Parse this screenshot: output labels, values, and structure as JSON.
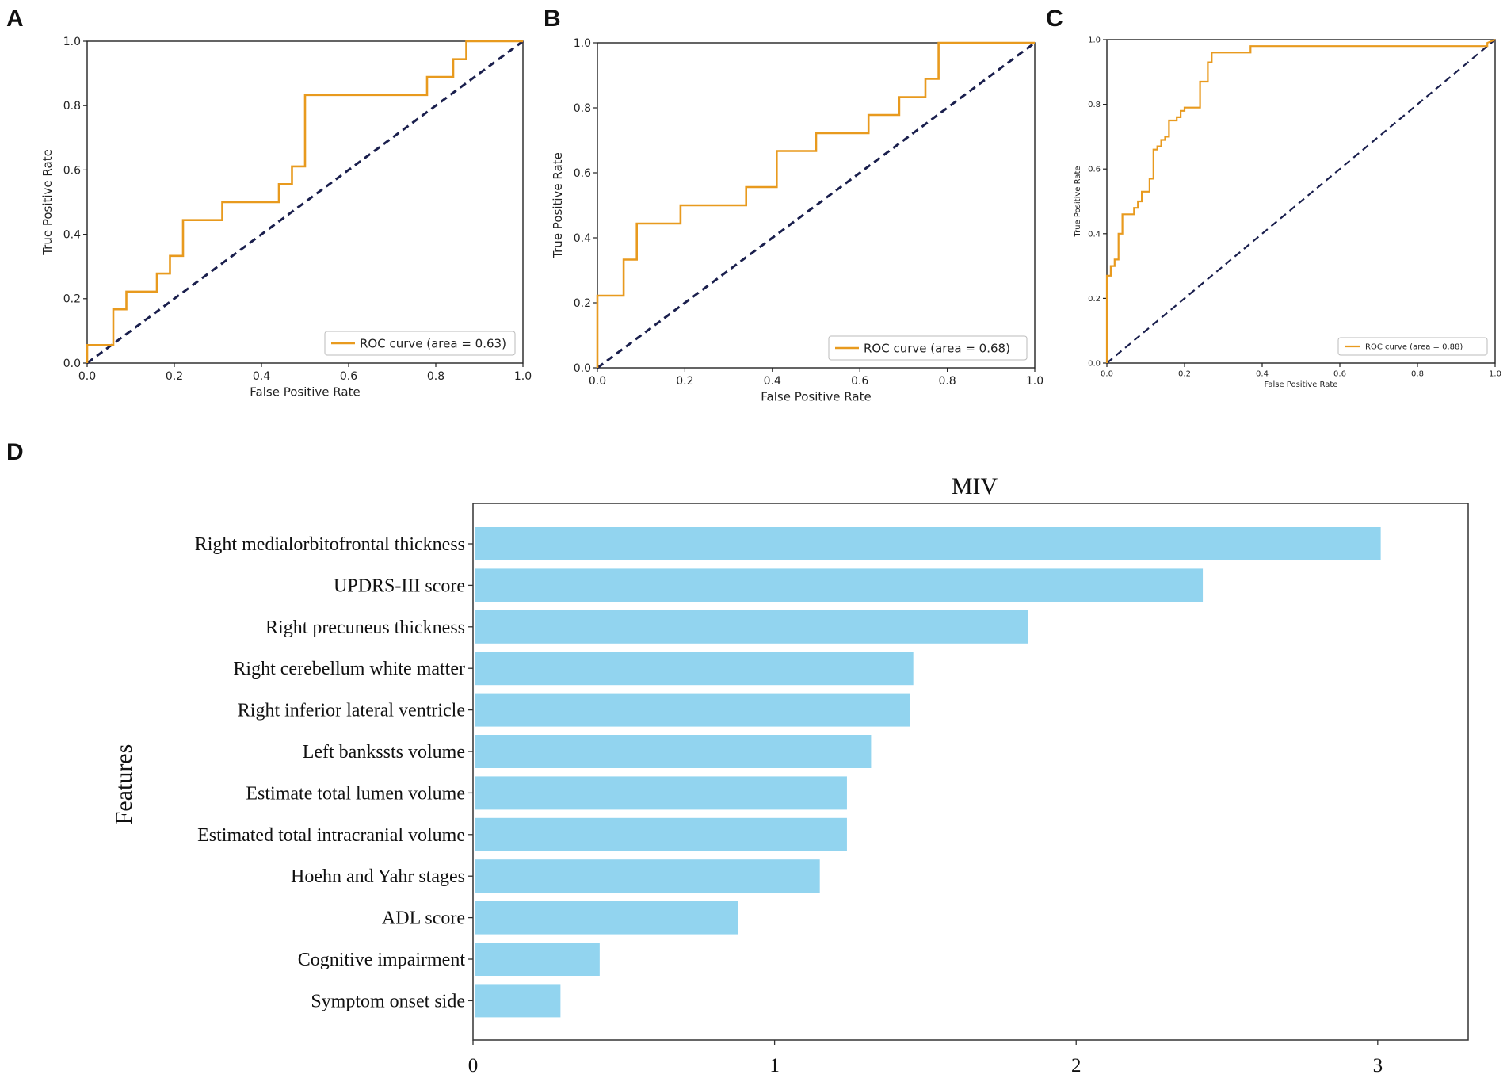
{
  "panel_labels": [
    "A",
    "B",
    "C",
    "D"
  ],
  "chart_data": [
    {
      "panel": "A",
      "type": "line",
      "xlabel": "False Positive Rate",
      "ylabel": "True Positive Rate",
      "xlim": [
        0,
        1
      ],
      "ylim": [
        0,
        1
      ],
      "xticks": [
        "0.0",
        "0.2",
        "0.4",
        "0.6",
        "0.8",
        "1.0"
      ],
      "yticks": [
        "0.0",
        "0.2",
        "0.4",
        "0.6",
        "0.8",
        "1.0"
      ],
      "legend": "ROC curve (area = 0.63)",
      "legend_position": "lower-right",
      "roc_color": "#e89a1e",
      "chance_color": "#1a1f4d",
      "roc": {
        "fpr": [
          0,
          0,
          0.06,
          0.06,
          0.09,
          0.09,
          0.16,
          0.16,
          0.19,
          0.19,
          0.22,
          0.22,
          0.31,
          0.31,
          0.44,
          0.44,
          0.47,
          0.47,
          0.5,
          0.5,
          0.78,
          0.78,
          0.84,
          0.84,
          0.87,
          0.87,
          1.0
        ],
        "tpr": [
          0,
          0.056,
          0.056,
          0.167,
          0.167,
          0.222,
          0.222,
          0.278,
          0.278,
          0.333,
          0.333,
          0.444,
          0.444,
          0.5,
          0.5,
          0.556,
          0.556,
          0.611,
          0.611,
          0.833,
          0.833,
          0.889,
          0.889,
          0.944,
          0.944,
          1.0,
          1.0
        ]
      }
    },
    {
      "panel": "B",
      "type": "line",
      "xlabel": "False Positive Rate",
      "ylabel": "True Positive Rate",
      "xlim": [
        0,
        1
      ],
      "ylim": [
        0,
        1
      ],
      "xticks": [
        "0.0",
        "0.2",
        "0.4",
        "0.6",
        "0.8",
        "1.0"
      ],
      "yticks": [
        "0.0",
        "0.2",
        "0.4",
        "0.6",
        "0.8",
        "1.0"
      ],
      "legend": "ROC curve (area = 0.68)",
      "legend_position": "lower-right",
      "roc_color": "#e89a1e",
      "chance_color": "#1a1f4d",
      "roc": {
        "fpr": [
          0,
          0,
          0.06,
          0.06,
          0.09,
          0.09,
          0.19,
          0.19,
          0.34,
          0.34,
          0.41,
          0.41,
          0.5,
          0.5,
          0.62,
          0.62,
          0.69,
          0.69,
          0.75,
          0.75,
          0.78,
          0.78,
          1.0
        ],
        "tpr": [
          0,
          0.222,
          0.222,
          0.333,
          0.333,
          0.444,
          0.444,
          0.5,
          0.5,
          0.556,
          0.556,
          0.667,
          0.667,
          0.722,
          0.722,
          0.778,
          0.778,
          0.833,
          0.833,
          0.889,
          0.889,
          1.0,
          1.0
        ]
      }
    },
    {
      "panel": "C",
      "type": "line",
      "xlabel": "False Positive Rate",
      "ylabel": "True Positive Rate",
      "xlim": [
        0,
        1
      ],
      "ylim": [
        0,
        1
      ],
      "xticks": [
        "0.0",
        "0.2",
        "0.4",
        "0.6",
        "0.8",
        "1.0"
      ],
      "yticks": [
        "0.0",
        "0.2",
        "0.4",
        "0.6",
        "0.8",
        "1.0"
      ],
      "legend": "ROC curve (area = 0.88)",
      "legend_position": "lower-right",
      "roc_color": "#e89a1e",
      "chance_color": "#1a1f4d",
      "roc": {
        "fpr": [
          0,
          0,
          0.01,
          0.01,
          0.02,
          0.02,
          0.03,
          0.03,
          0.04,
          0.04,
          0.07,
          0.07,
          0.08,
          0.08,
          0.09,
          0.09,
          0.11,
          0.11,
          0.12,
          0.12,
          0.13,
          0.13,
          0.14,
          0.14,
          0.15,
          0.15,
          0.16,
          0.16,
          0.18,
          0.18,
          0.19,
          0.19,
          0.2,
          0.2,
          0.24,
          0.24,
          0.26,
          0.26,
          0.27,
          0.27,
          0.37,
          0.37,
          0.98,
          0.98,
          1.0
        ],
        "tpr": [
          0,
          0.27,
          0.27,
          0.3,
          0.3,
          0.32,
          0.32,
          0.4,
          0.4,
          0.46,
          0.46,
          0.48,
          0.48,
          0.5,
          0.5,
          0.53,
          0.53,
          0.57,
          0.57,
          0.66,
          0.66,
          0.67,
          0.67,
          0.69,
          0.69,
          0.7,
          0.7,
          0.75,
          0.75,
          0.76,
          0.76,
          0.78,
          0.78,
          0.79,
          0.79,
          0.87,
          0.87,
          0.93,
          0.93,
          0.96,
          0.96,
          0.98,
          0.98,
          0.99,
          1.0
        ]
      }
    },
    {
      "panel": "D",
      "type": "bar",
      "orientation": "horizontal",
      "title": "MIV",
      "ylabel": "Features",
      "xlim": [
        0,
        3.3
      ],
      "xticks": [
        "0",
        "1",
        "2",
        "3"
      ],
      "bar_color": "#92d4ef",
      "categories": [
        "Right medialorbitofrontal thickness",
        "UPDRS-III score",
        "Right precuneus thickness",
        "Right cerebellum white matter",
        "Right inferior lateral ventricle",
        "Left bankssts volume",
        "Estimate total lumen volume",
        "Estimated total intracranial volume",
        "Hoehn and Yahr stages",
        "ADL score",
        "Cognitive impairment",
        "Symptom onset side"
      ],
      "values": [
        3.01,
        2.42,
        1.84,
        1.46,
        1.45,
        1.32,
        1.24,
        1.24,
        1.15,
        0.88,
        0.42,
        0.29
      ]
    }
  ]
}
